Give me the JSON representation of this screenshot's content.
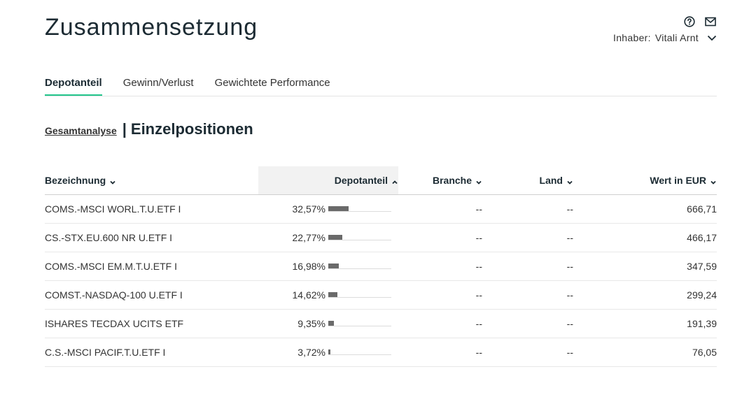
{
  "header": {
    "title": "Zusammensetzung",
    "icons": [
      "help-icon",
      "mail-icon"
    ],
    "owner_label": "Inhaber:",
    "owner_name": "Vitali Arnt"
  },
  "tabs": [
    {
      "label": "Depotanteil",
      "active": true
    },
    {
      "label": "Gewinn/Verlust",
      "active": false
    },
    {
      "label": "Gewichtete Performance",
      "active": false
    }
  ],
  "subheader": {
    "link_label": "Gesamtanalyse",
    "separator": "|",
    "title": "Einzelpositionen"
  },
  "table": {
    "columns": {
      "name": "Bezeichnung",
      "share": "Depotanteil",
      "branche": "Branche",
      "land": "Land",
      "value": "Wert in EUR"
    },
    "sorted_by": "share",
    "rows": [
      {
        "name": "COMS.-MSCI WORL.T.U.ETF I",
        "share": "32,57%",
        "share_value": 32.57,
        "branche": "--",
        "land": "--",
        "value": "666,71"
      },
      {
        "name": "CS.-STX.EU.600 NR U.ETF I",
        "share": "22,77%",
        "share_value": 22.77,
        "branche": "--",
        "land": "--",
        "value": "466,17"
      },
      {
        "name": "COMS.-MSCI EM.M.T.U.ETF I",
        "share": "16,98%",
        "share_value": 16.98,
        "branche": "--",
        "land": "--",
        "value": "347,59"
      },
      {
        "name": "COMST.-NASDAQ-100 U.ETF I",
        "share": "14,62%",
        "share_value": 14.62,
        "branche": "--",
        "land": "--",
        "value": "299,24"
      },
      {
        "name": "ISHARES TECDAX UCITS ETF",
        "share": "9,35%",
        "share_value": 9.35,
        "branche": "--",
        "land": "--",
        "value": "191,39"
      },
      {
        "name": "C.S.-MSCI PACIF.T.U.ETF I",
        "share": "3,72%",
        "share_value": 3.72,
        "branche": "--",
        "land": "--",
        "value": "76,05"
      }
    ]
  },
  "colors": {
    "accent": "#22c58b",
    "bar": "#6a6a6a",
    "sorted_header_bg": "#f2f2f2"
  }
}
